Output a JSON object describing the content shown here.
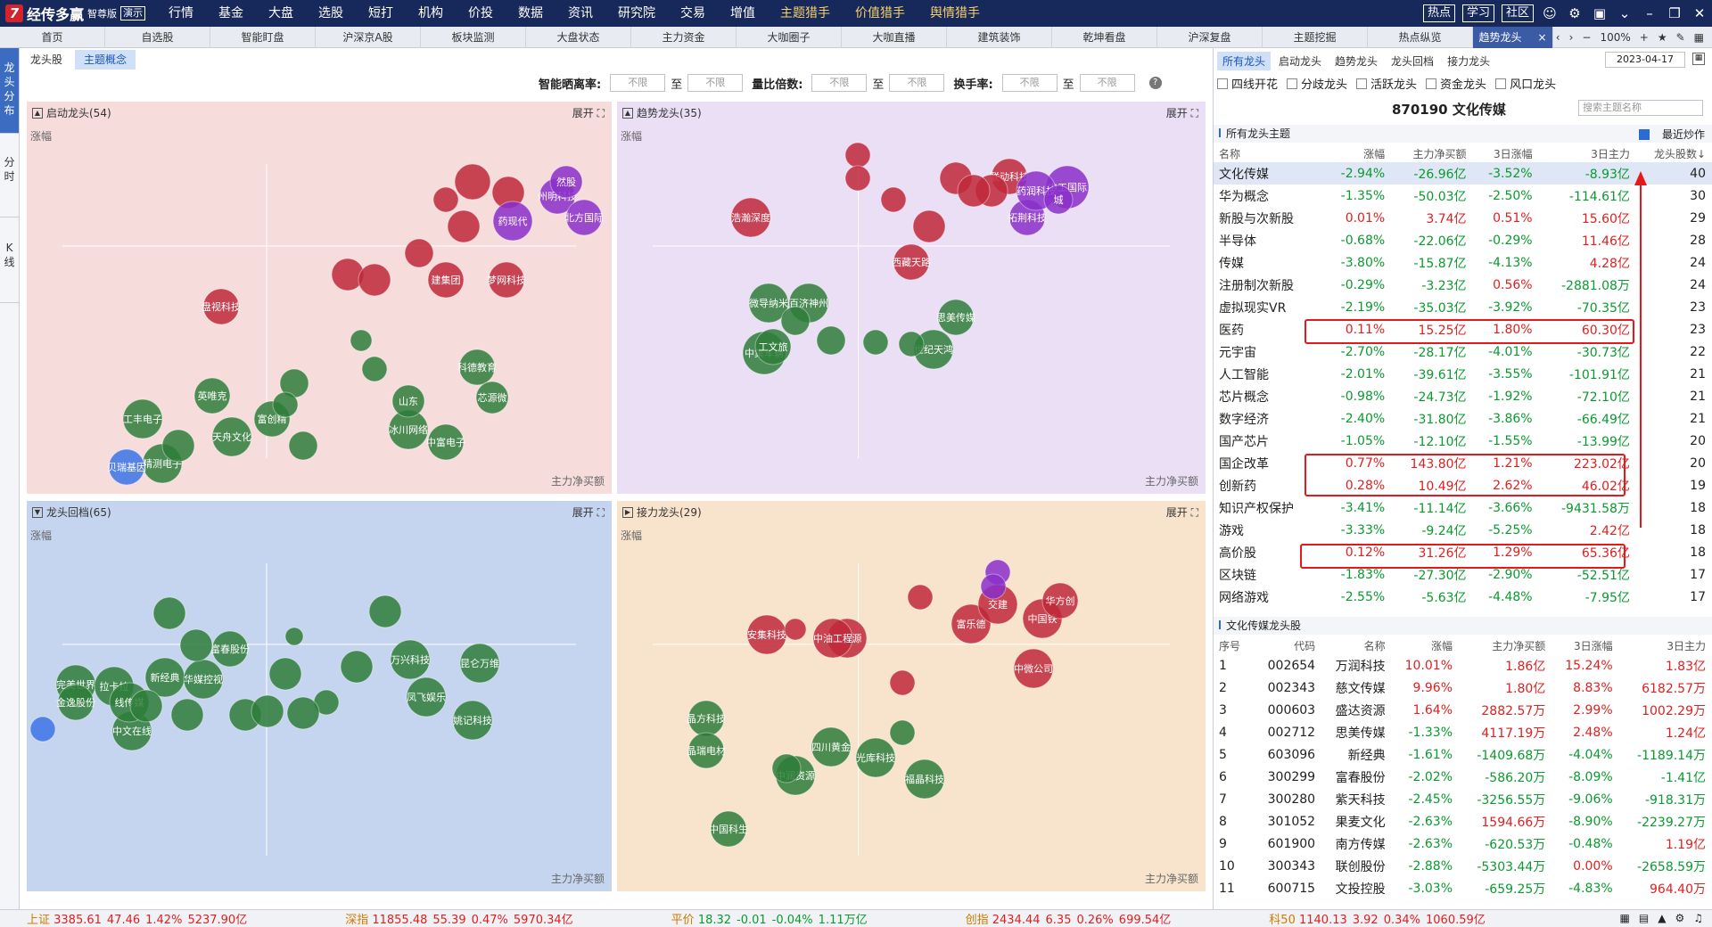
{
  "app": {
    "brand": "经传多赢",
    "edition": "智尊版",
    "mode": "演示"
  },
  "menu": [
    "行情",
    "基金",
    "大盘",
    "选股",
    "短打",
    "机构",
    "价投",
    "数据",
    "资讯",
    "研究院",
    "交易",
    "增值",
    "主题猎手",
    "价值猎手",
    "舆情猎手"
  ],
  "menu_gold": [
    "主题猎手",
    "价值猎手",
    "舆情猎手"
  ],
  "menu_right": [
    "热点",
    "学习",
    "社区"
  ],
  "tabs": [
    "首页",
    "自选股",
    "智能盯盘",
    "沪深京A股",
    "板块监测",
    "大盘状态",
    "主力资金",
    "大咖圈子",
    "大咖直播",
    "建筑装饰",
    "乾坤看盘",
    "沪深复盘",
    "主题挖掘",
    "热点纵览",
    "趋势龙头"
  ],
  "active_tab": "趋势龙头",
  "tab_zoom": "100%",
  "vtabs": [
    "龙头分布",
    "分时",
    "K线"
  ],
  "subtabs": [
    "龙头股",
    "主题概念"
  ],
  "filters": {
    "ratio_label": "智能晒离率:",
    "volume_label": "量比倍数:",
    "turnover_label": "换手率:",
    "placeholder": "不限",
    "to": "至"
  },
  "panels": [
    {
      "title": "启动龙头(54)",
      "expand": "展开",
      "ylabel": "涨幅",
      "xlabel": "主力净买额"
    },
    {
      "title": "趋势龙头(35)",
      "expand": "展开",
      "ylabel": "涨幅",
      "xlabel": "主力净买额"
    },
    {
      "title": "龙头回档(65)",
      "expand": "展开",
      "ylabel": "涨幅",
      "xlabel": "主力净买额"
    },
    {
      "title": "接力龙头(29)",
      "expand": "展开",
      "ylabel": "涨幅",
      "xlabel": "主力净买额"
    }
  ],
  "colors": {
    "red": "#c0283a",
    "green": "#2e7d3a",
    "purple": "#8a2fc9",
    "blue": "#3c73e8",
    "bg1": "#f7dcdc",
    "bg2": "#eadff5",
    "bg3": "#c5d5ef",
    "bg4": "#f8e4cc"
  },
  "bubbles": {
    "p1": [
      {
        "c": "red",
        "t": "盘视科技"
      },
      {
        "c": "red",
        "t": "梦网科技"
      },
      {
        "c": "red",
        "t": "建集团"
      },
      {
        "c": "red",
        "t": ""
      },
      {
        "c": "red",
        "t": ""
      },
      {
        "c": "red",
        "t": ""
      },
      {
        "c": "red",
        "t": ""
      },
      {
        "c": "red",
        "t": ""
      },
      {
        "c": "red",
        "t": ""
      },
      {
        "c": "red",
        "t": ""
      },
      {
        "c": "purple",
        "t": "州明科技"
      },
      {
        "c": "purple",
        "t": "北方国际"
      },
      {
        "c": "purple",
        "t": "药现代"
      },
      {
        "c": "purple",
        "t": "然股"
      },
      {
        "c": "green",
        "t": "英唯克"
      },
      {
        "c": "green",
        "t": "工丰电子"
      },
      {
        "c": "green",
        "t": "天舟文化"
      },
      {
        "c": "green",
        "t": "精测电子"
      },
      {
        "c": "green",
        "t": "富创精"
      },
      {
        "c": "green",
        "t": "科德教育"
      },
      {
        "c": "green",
        "t": "芯源微"
      },
      {
        "c": "green",
        "t": "冰川网络"
      },
      {
        "c": "green",
        "t": "中富电子"
      },
      {
        "c": "green",
        "t": "山东"
      },
      {
        "c": "green",
        "t": ""
      },
      {
        "c": "green",
        "t": ""
      },
      {
        "c": "green",
        "t": ""
      },
      {
        "c": "green",
        "t": ""
      },
      {
        "c": "green",
        "t": ""
      },
      {
        "c": "green",
        "t": ""
      },
      {
        "c": "blue",
        "t": "贝瑞基因"
      }
    ],
    "p2": [
      {
        "c": "red",
        "t": "浩瀚深度"
      },
      {
        "c": "red",
        "t": "西藏天路"
      },
      {
        "c": "red",
        "t": "联动科技"
      },
      {
        "c": "red",
        "t": ""
      },
      {
        "c": "red",
        "t": ""
      },
      {
        "c": "red",
        "t": ""
      },
      {
        "c": "red",
        "t": ""
      },
      {
        "c": "red",
        "t": ""
      },
      {
        "c": "red",
        "t": ""
      },
      {
        "c": "red",
        "t": ""
      },
      {
        "c": "purple",
        "t": "中工国际"
      },
      {
        "c": "purple",
        "t": "拓荆科技-U"
      },
      {
        "c": "purple",
        "t": "药润科技"
      },
      {
        "c": "purple",
        "t": "城"
      },
      {
        "c": "green",
        "t": "微导纳米"
      },
      {
        "c": "green",
        "t": "百济神州-U"
      },
      {
        "c": "green",
        "t": "思美传媒"
      },
      {
        "c": "green",
        "t": "世纪天鸿"
      },
      {
        "c": "green",
        "t": "中集车辆"
      },
      {
        "c": "green",
        "t": "工文旅"
      },
      {
        "c": "green",
        "t": ""
      },
      {
        "c": "green",
        "t": ""
      },
      {
        "c": "green",
        "t": ""
      },
      {
        "c": "green",
        "t": ""
      }
    ],
    "p3": [
      {
        "c": "green",
        "t": "富春股份"
      },
      {
        "c": "green",
        "t": "完美世界"
      },
      {
        "c": "green",
        "t": "拉卡拉"
      },
      {
        "c": "green",
        "t": "新经典"
      },
      {
        "c": "green",
        "t": "华媒控视"
      },
      {
        "c": "green",
        "t": "万兴科技"
      },
      {
        "c": "green",
        "t": "昆仑万维"
      },
      {
        "c": "green",
        "t": "凤飞娱乐"
      },
      {
        "c": "green",
        "t": "姚记科技"
      },
      {
        "c": "green",
        "t": "中文在线"
      },
      {
        "c": "green",
        "t": "线传媒"
      },
      {
        "c": "green",
        "t": "金逸股份"
      },
      {
        "c": "green",
        "t": ""
      },
      {
        "c": "green",
        "t": ""
      },
      {
        "c": "green",
        "t": ""
      },
      {
        "c": "green",
        "t": ""
      },
      {
        "c": "green",
        "t": ""
      },
      {
        "c": "green",
        "t": ""
      },
      {
        "c": "green",
        "t": ""
      },
      {
        "c": "green",
        "t": ""
      },
      {
        "c": "green",
        "t": ""
      },
      {
        "c": "green",
        "t": ""
      },
      {
        "c": "green",
        "t": ""
      },
      {
        "c": "green",
        "t": ""
      },
      {
        "c": "blue",
        "t": ""
      }
    ],
    "p4": [
      {
        "c": "red",
        "t": "安集科技"
      },
      {
        "c": "red",
        "t": "欣资源"
      },
      {
        "c": "red",
        "t": "中油工程"
      },
      {
        "c": "red",
        "t": "富乐德"
      },
      {
        "c": "red",
        "t": "交建"
      },
      {
        "c": "red",
        "t": "中国铁"
      },
      {
        "c": "red",
        "t": "华方创"
      },
      {
        "c": "red",
        "t": "中微公司"
      },
      {
        "c": "red",
        "t": ""
      },
      {
        "c": "red",
        "t": ""
      },
      {
        "c": "red",
        "t": ""
      },
      {
        "c": "purple",
        "t": ""
      },
      {
        "c": "purple",
        "t": ""
      },
      {
        "c": "green",
        "t": "晶方科技"
      },
      {
        "c": "green",
        "t": "晶瑞电材"
      },
      {
        "c": "green",
        "t": "中润资源"
      },
      {
        "c": "green",
        "t": "四川黄金"
      },
      {
        "c": "green",
        "t": "光库科技"
      },
      {
        "c": "green",
        "t": "福晶科技"
      },
      {
        "c": "green",
        "t": "中国科生育宝"
      },
      {
        "c": "green",
        "t": ""
      },
      {
        "c": "green",
        "t": ""
      }
    ]
  },
  "right": {
    "tabs": [
      "所有龙头",
      "启动龙头",
      "趋势龙头",
      "龙头回档",
      "接力龙头"
    ],
    "date": "2023-04-17",
    "checks": [
      "四线开花",
      "分歧龙头",
      "活跃龙头",
      "资金龙头",
      "风口龙头"
    ],
    "stock_head": "870190  文化传媒",
    "search_placeholder": "搜索主题名称",
    "sec1_title": "所有龙头主题",
    "recent_label": "最近炒作",
    "table1_headers": [
      "名称",
      "涨幅",
      "主力净买额",
      "3日涨幅",
      "3日主力",
      "龙头股数↓"
    ],
    "table1": [
      [
        "文化传媒",
        "-2.94%",
        "-26.96亿",
        "-3.52%",
        "-8.93亿",
        "40"
      ],
      [
        "华为概念",
        "-1.35%",
        "-50.03亿",
        "-2.50%",
        "-114.61亿",
        "30"
      ],
      [
        "新股与次新股",
        "0.01%",
        "3.74亿",
        "0.51%",
        "15.60亿",
        "29"
      ],
      [
        "半导体",
        "-0.68%",
        "-22.06亿",
        "-0.29%",
        "11.46亿",
        "28"
      ],
      [
        "传媒",
        "-3.80%",
        "-15.87亿",
        "-4.13%",
        "4.28亿",
        "24"
      ],
      [
        "注册制次新股",
        "-0.29%",
        "-3.23亿",
        "0.56%",
        "-2881.08万",
        "24"
      ],
      [
        "虚拟现实VR",
        "-2.19%",
        "-35.03亿",
        "-3.92%",
        "-70.35亿",
        "23"
      ],
      [
        "医药",
        "0.11%",
        "15.25亿",
        "1.80%",
        "60.30亿",
        "23"
      ],
      [
        "元宇宙",
        "-2.70%",
        "-28.17亿",
        "-4.01%",
        "-30.73亿",
        "22"
      ],
      [
        "人工智能",
        "-2.01%",
        "-39.61亿",
        "-3.55%",
        "-101.91亿",
        "21"
      ],
      [
        "芯片概念",
        "-0.98%",
        "-24.73亿",
        "-1.92%",
        "-72.10亿",
        "21"
      ],
      [
        "数字经济",
        "-2.40%",
        "-31.80亿",
        "-3.86%",
        "-66.49亿",
        "21"
      ],
      [
        "国产芯片",
        "-1.05%",
        "-12.10亿",
        "-1.55%",
        "-13.99亿",
        "20"
      ],
      [
        "国企改革",
        "0.77%",
        "143.80亿",
        "1.21%",
        "223.02亿",
        "20"
      ],
      [
        "创新药",
        "0.28%",
        "10.49亿",
        "2.62%",
        "46.02亿",
        "19"
      ],
      [
        "知识产权保护",
        "-3.41%",
        "-11.14亿",
        "-3.66%",
        "-9431.58万",
        "18"
      ],
      [
        "游戏",
        "-3.33%",
        "-9.24亿",
        "-5.25%",
        "2.42亿",
        "18"
      ],
      [
        "高价股",
        "0.12%",
        "31.26亿",
        "1.29%",
        "65.36亿",
        "18"
      ],
      [
        "区块链",
        "-1.83%",
        "-27.30亿",
        "-2.90%",
        "-52.51亿",
        "17"
      ],
      [
        "网络游戏",
        "-2.55%",
        "-5.63亿",
        "-4.48%",
        "-7.95亿",
        "17"
      ]
    ],
    "sec2_title": "文化传媒龙头股",
    "table2_headers": [
      "序号",
      "代码",
      "名称",
      "涨幅",
      "主力净买额",
      "3日涨幅",
      "3日主力"
    ],
    "table2": [
      [
        "1",
        "002654",
        "万润科技",
        "10.01%",
        "1.86亿",
        "15.24%",
        "1.83亿"
      ],
      [
        "2",
        "002343",
        "慈文传媒",
        "9.96%",
        "1.80亿",
        "8.83%",
        "6182.57万"
      ],
      [
        "3",
        "000603",
        "盛达资源",
        "1.64%",
        "2882.57万",
        "2.99%",
        "1002.29万"
      ],
      [
        "4",
        "002712",
        "思美传媒",
        "-1.33%",
        "4117.19万",
        "2.48%",
        "1.24亿"
      ],
      [
        "5",
        "603096",
        "新经典",
        "-1.61%",
        "-1409.68万",
        "-4.04%",
        "-1189.14万"
      ],
      [
        "6",
        "300299",
        "富春股份",
        "-2.02%",
        "-586.20万",
        "-8.09%",
        "-1.41亿"
      ],
      [
        "7",
        "300280",
        "紫天科技",
        "-2.45%",
        "-3256.55万",
        "-9.06%",
        "-918.31万"
      ],
      [
        "8",
        "301052",
        "果麦文化",
        "-2.63%",
        "1594.66万",
        "-8.90%",
        "-2239.27万"
      ],
      [
        "9",
        "601900",
        "南方传媒",
        "-2.63%",
        "-620.53万",
        "-0.48%",
        "1.19亿"
      ],
      [
        "10",
        "300343",
        "联创股份",
        "-2.88%",
        "-5303.44万",
        "0.00%",
        "-2658.59万"
      ],
      [
        "11",
        "600715",
        "文投控股",
        "-3.03%",
        "-659.25万",
        "-4.83%",
        "964.40万"
      ]
    ]
  },
  "status": [
    {
      "name": "上证",
      "val": "3385.61",
      "chg": "47.46",
      "pct": "1.42%",
      "amt": "5237.90亿"
    },
    {
      "name": "深指",
      "val": "11855.48",
      "chg": "55.39",
      "pct": "0.47%",
      "amt": "5970.34亿"
    },
    {
      "name": "平价",
      "val": "18.32",
      "chg": "-0.01",
      "pct": "-0.04%",
      "amt": "1.11万亿"
    },
    {
      "name": "创指",
      "val": "2434.44",
      "chg": "6.35",
      "pct": "0.26%",
      "amt": "699.54亿"
    },
    {
      "name": "科50",
      "val": "1140.13",
      "chg": "3.92",
      "pct": "0.34%",
      "amt": "1060.59亿"
    }
  ]
}
